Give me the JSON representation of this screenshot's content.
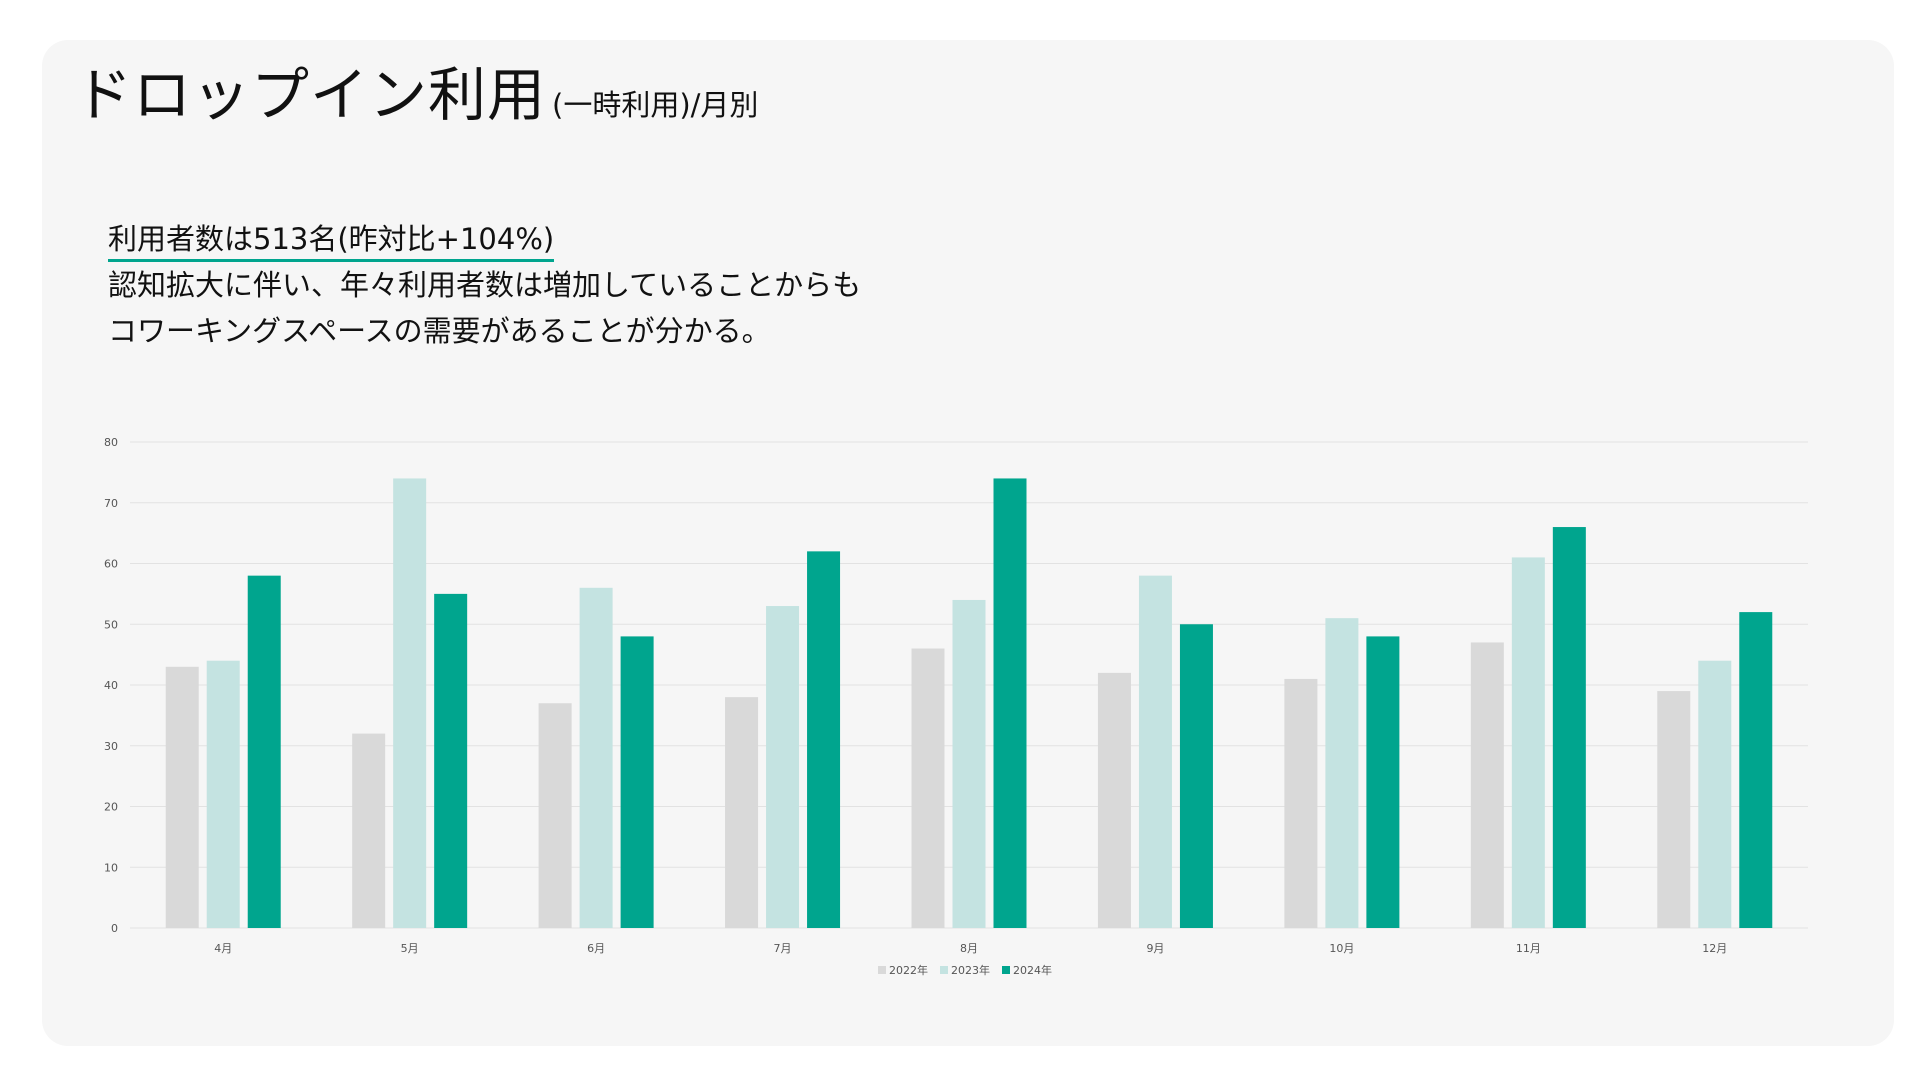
{
  "header": {
    "title": "ドロップイン利用",
    "subtitle": "(一時利用)/月別"
  },
  "summary": {
    "highlight": "利用者数は513名(昨対比+104%)",
    "line2": "認知拡大に伴い、年々利用者数は増加していることからも",
    "line3": "コワーキングスペースの需要があることが分かる。"
  },
  "colors": {
    "series": [
      "#d9d9d9",
      "#c4e3e1",
      "#00a58e"
    ],
    "grid": "#e2e2e2",
    "axis_text": "#555555",
    "accent": "#00a58e"
  },
  "chart_data": {
    "type": "bar",
    "title": "",
    "xlabel": "",
    "ylabel": "",
    "categories": [
      "4月",
      "5月",
      "6月",
      "7月",
      "8月",
      "9月",
      "10月",
      "11月",
      "12月"
    ],
    "series": [
      {
        "name": "2022年",
        "values": [
          43,
          32,
          37,
          38,
          46,
          42,
          41,
          47,
          39
        ]
      },
      {
        "name": "2023年",
        "values": [
          44,
          74,
          56,
          53,
          54,
          58,
          51,
          61,
          44
        ]
      },
      {
        "name": "2024年",
        "values": [
          58,
          55,
          48,
          62,
          74,
          50,
          48,
          66,
          52
        ]
      }
    ],
    "ylim": [
      0,
      80
    ],
    "yticks": [
      0,
      10,
      20,
      30,
      40,
      50,
      60,
      70,
      80
    ],
    "grid": true,
    "legend": "bottom-center"
  }
}
